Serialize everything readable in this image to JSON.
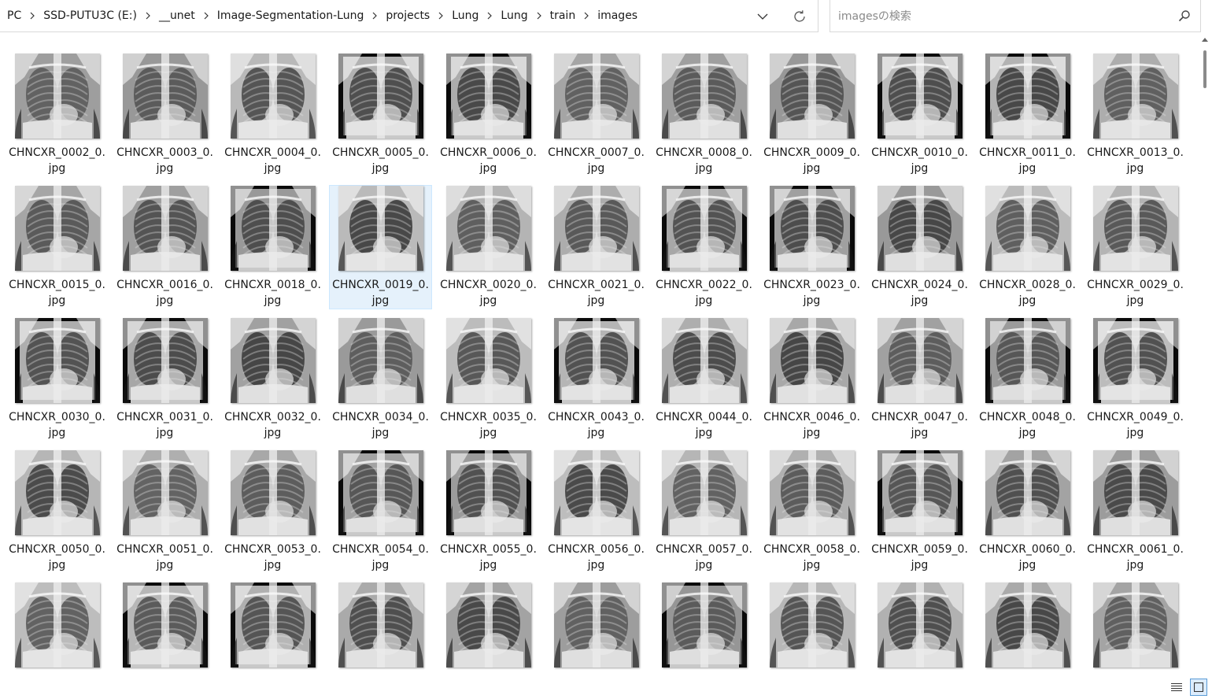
{
  "breadcrumb": {
    "items": [
      "PC",
      "SSD-PUTU3C (E:)",
      "__unet",
      "Image-Segmentation-Lung",
      "projects",
      "Lung",
      "Lung",
      "train",
      "images"
    ]
  },
  "search": {
    "placeholder": "imagesの検索",
    "value": ""
  },
  "files": [
    {
      "name": "CHNCXR_0002_0.jpg",
      "line1": "CHNCXR_0002_0.",
      "line2": "jpg"
    },
    {
      "name": "CHNCXR_0003_0.jpg",
      "line1": "CHNCXR_0003_0.",
      "line2": "jpg"
    },
    {
      "name": "CHNCXR_0004_0.jpg",
      "line1": "CHNCXR_0004_0.",
      "line2": "jpg"
    },
    {
      "name": "CHNCXR_0005_0.jpg",
      "line1": "CHNCXR_0005_0.",
      "line2": "jpg"
    },
    {
      "name": "CHNCXR_0006_0.jpg",
      "line1": "CHNCXR_0006_0.",
      "line2": "jpg"
    },
    {
      "name": "CHNCXR_0007_0.jpg",
      "line1": "CHNCXR_0007_0.",
      "line2": "jpg"
    },
    {
      "name": "CHNCXR_0008_0.jpg",
      "line1": "CHNCXR_0008_0.",
      "line2": "jpg"
    },
    {
      "name": "CHNCXR_0009_0.jpg",
      "line1": "CHNCXR_0009_0.",
      "line2": "jpg"
    },
    {
      "name": "CHNCXR_0010_0.jpg",
      "line1": "CHNCXR_0010_0.",
      "line2": "jpg"
    },
    {
      "name": "CHNCXR_0011_0.jpg",
      "line1": "CHNCXR_0011_0.",
      "line2": "jpg"
    },
    {
      "name": "CHNCXR_0013_0.jpg",
      "line1": "CHNCXR_0013_0.",
      "line2": "jpg"
    },
    {
      "name": "CHNCXR_0015_0.jpg",
      "line1": "CHNCXR_0015_0.",
      "line2": "jpg"
    },
    {
      "name": "CHNCXR_0016_0.jpg",
      "line1": "CHNCXR_0016_0.",
      "line2": "jpg"
    },
    {
      "name": "CHNCXR_0018_0.jpg",
      "line1": "CHNCXR_0018_0.",
      "line2": "jpg"
    },
    {
      "name": "CHNCXR_0019_0.jpg",
      "line1": "CHNCXR_0019_0.",
      "line2": "jpg",
      "selected": true
    },
    {
      "name": "CHNCXR_0020_0.jpg",
      "line1": "CHNCXR_0020_0.",
      "line2": "jpg"
    },
    {
      "name": "CHNCXR_0021_0.jpg",
      "line1": "CHNCXR_0021_0.",
      "line2": "jpg"
    },
    {
      "name": "CHNCXR_0022_0.jpg",
      "line1": "CHNCXR_0022_0.",
      "line2": "jpg"
    },
    {
      "name": "CHNCXR_0023_0.jpg",
      "line1": "CHNCXR_0023_0.",
      "line2": "jpg"
    },
    {
      "name": "CHNCXR_0024_0.jpg",
      "line1": "CHNCXR_0024_0.",
      "line2": "jpg"
    },
    {
      "name": "CHNCXR_0028_0.jpg",
      "line1": "CHNCXR_0028_0.",
      "line2": "jpg"
    },
    {
      "name": "CHNCXR_0029_0.jpg",
      "line1": "CHNCXR_0029_0.",
      "line2": "jpg"
    },
    {
      "name": "CHNCXR_0030_0.jpg",
      "line1": "CHNCXR_0030_0.",
      "line2": "jpg"
    },
    {
      "name": "CHNCXR_0031_0.jpg",
      "line1": "CHNCXR_0031_0.",
      "line2": "jpg"
    },
    {
      "name": "CHNCXR_0032_0.jpg",
      "line1": "CHNCXR_0032_0.",
      "line2": "jpg"
    },
    {
      "name": "CHNCXR_0034_0.jpg",
      "line1": "CHNCXR_0034_0.",
      "line2": "jpg"
    },
    {
      "name": "CHNCXR_0035_0.jpg",
      "line1": "CHNCXR_0035_0.",
      "line2": "jpg"
    },
    {
      "name": "CHNCXR_0043_0.jpg",
      "line1": "CHNCXR_0043_0.",
      "line2": "jpg"
    },
    {
      "name": "CHNCXR_0044_0.jpg",
      "line1": "CHNCXR_0044_0.",
      "line2": "jpg"
    },
    {
      "name": "CHNCXR_0046_0.jpg",
      "line1": "CHNCXR_0046_0.",
      "line2": "jpg"
    },
    {
      "name": "CHNCXR_0047_0.jpg",
      "line1": "CHNCXR_0047_0.",
      "line2": "jpg"
    },
    {
      "name": "CHNCXR_0048_0.jpg",
      "line1": "CHNCXR_0048_0.",
      "line2": "jpg"
    },
    {
      "name": "CHNCXR_0049_0.jpg",
      "line1": "CHNCXR_0049_0.",
      "line2": "jpg"
    },
    {
      "name": "CHNCXR_0050_0.jpg",
      "line1": "CHNCXR_0050_0.",
      "line2": "jpg"
    },
    {
      "name": "CHNCXR_0051_0.jpg",
      "line1": "CHNCXR_0051_0.",
      "line2": "jpg"
    },
    {
      "name": "CHNCXR_0053_0.jpg",
      "line1": "CHNCXR_0053_0.",
      "line2": "jpg"
    },
    {
      "name": "CHNCXR_0054_0.jpg",
      "line1": "CHNCXR_0054_0.",
      "line2": "jpg"
    },
    {
      "name": "CHNCXR_0055_0.jpg",
      "line1": "CHNCXR_0055_0.",
      "line2": "jpg"
    },
    {
      "name": "CHNCXR_0056_0.jpg",
      "line1": "CHNCXR_0056_0.",
      "line2": "jpg"
    },
    {
      "name": "CHNCXR_0057_0.jpg",
      "line1": "CHNCXR_0057_0.",
      "line2": "jpg"
    },
    {
      "name": "CHNCXR_0058_0.jpg",
      "line1": "CHNCXR_0058_0.",
      "line2": "jpg"
    },
    {
      "name": "CHNCXR_0059_0.jpg",
      "line1": "CHNCXR_0059_0.",
      "line2": "jpg"
    },
    {
      "name": "CHNCXR_0060_0.jpg",
      "line1": "CHNCXR_0060_0.",
      "line2": "jpg"
    },
    {
      "name": "CHNCXR_0061_0.jpg",
      "line1": "CHNCXR_0061_0.",
      "line2": "jpg"
    },
    {
      "name": "",
      "line1": "",
      "line2": ""
    },
    {
      "name": "",
      "line1": "",
      "line2": ""
    },
    {
      "name": "",
      "line1": "",
      "line2": ""
    },
    {
      "name": "",
      "line1": "",
      "line2": ""
    },
    {
      "name": "",
      "line1": "",
      "line2": ""
    },
    {
      "name": "",
      "line1": "",
      "line2": ""
    },
    {
      "name": "",
      "line1": "",
      "line2": ""
    },
    {
      "name": "",
      "line1": "",
      "line2": ""
    },
    {
      "name": "",
      "line1": "",
      "line2": ""
    },
    {
      "name": "",
      "line1": "",
      "line2": ""
    },
    {
      "name": "",
      "line1": "",
      "line2": ""
    }
  ],
  "icons": {
    "chevron": "chevron-right-icon",
    "dropdown": "chevron-down-icon",
    "refresh": "refresh-icon",
    "search": "search-icon",
    "details_view": "details-view-icon",
    "large_icons_view": "large-icons-view-icon",
    "thumbnail": "xray-thumbnail"
  },
  "colors": {
    "selection_bg": "#e5f1fb",
    "selection_border": "#cce8ff",
    "active_view_border": "#5a9bd5"
  }
}
